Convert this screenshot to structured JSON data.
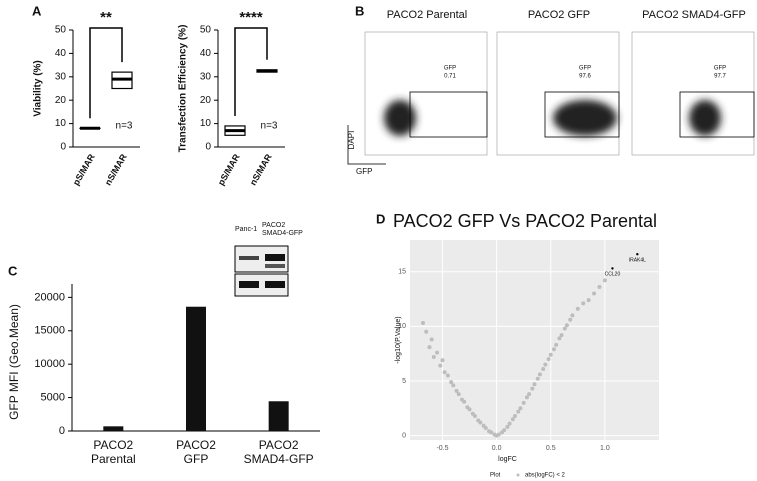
{
  "panels": {
    "a": "A",
    "b": "B",
    "c": "C",
    "d": "D"
  },
  "flow": {
    "x_label": "GFP",
    "y_label": "DAPI",
    "plots": [
      {
        "title": "PACO2 Parental",
        "gate_label": "GFP",
        "gate_value": 0.71
      },
      {
        "title": "PACO2 GFP",
        "gate_label": "GFP",
        "gate_value": 97.6
      },
      {
        "title": "PACO2 SMAD4-GFP",
        "gate_label": "GFP",
        "gate_value": 97.7
      }
    ]
  },
  "blot": {
    "lanes": [
      "Panc-1",
      "PACO2 SMAD4-GFP"
    ]
  },
  "chart_data": [
    {
      "type": "box",
      "y_label": "Viability (%)",
      "categories": [
        "pS/MAR",
        "nS/MAR"
      ],
      "low": [
        8,
        25
      ],
      "median": [
        8,
        29
      ],
      "high": [
        8,
        32
      ],
      "ylim": [
        0,
        50
      ],
      "yticks": [
        0,
        10,
        20,
        30,
        40,
        50
      ],
      "significance": "**",
      "annotation": "n=3",
      "color": "#000000"
    },
    {
      "type": "box",
      "y_label": "Transfection Efficiency (%)",
      "categories": [
        "pS/MAR",
        "nS/MAR"
      ],
      "low": [
        5,
        32
      ],
      "median": [
        7,
        32.5
      ],
      "high": [
        9,
        33
      ],
      "ylim": [
        0,
        50
      ],
      "yticks": [
        0,
        10,
        20,
        30,
        40,
        50
      ],
      "significance": "****",
      "annotation": "n=3",
      "color": "#000000"
    },
    {
      "type": "bar",
      "y_label": "GFP MFI (Geo.Mean)",
      "categories": [
        "PACO2 Parental",
        "PACO2 GFP",
        "PACO2 SMAD4-GFP"
      ],
      "values": [
        700,
        18600,
        4450
      ],
      "color": "#111111",
      "ylim": [
        0,
        22000
      ],
      "yticks": [
        0,
        5000,
        10000,
        15000,
        20000
      ]
    },
    {
      "type": "scatter",
      "title": "PACO2 GFP Vs PACO2 Parental",
      "x_label": "logFC",
      "y_label": "-log10(P.Value)",
      "color": "#bdbdbd",
      "x": [
        -0.68,
        -0.65,
        -0.62,
        -0.6,
        -0.58,
        -0.55,
        -0.52,
        -0.5,
        -0.48,
        -0.45,
        -0.42,
        -0.4,
        -0.37,
        -0.35,
        -0.32,
        -0.3,
        -0.27,
        -0.25,
        -0.22,
        -0.2,
        -0.17,
        -0.15,
        -0.12,
        -0.1,
        -0.07,
        -0.05,
        -0.02,
        0,
        0.02,
        0.05,
        0.07,
        0.1,
        0.12,
        0.15,
        0.17,
        0.2,
        0.22,
        0.25,
        0.28,
        0.3,
        0.33,
        0.35,
        0.38,
        0.4,
        0.43,
        0.45,
        0.48,
        0.5,
        0.53,
        0.55,
        0.58,
        0.6,
        0.63,
        0.65,
        0.68,
        0.7,
        0.75,
        0.8,
        0.85,
        0.9,
        0.95,
        1.0
      ],
      "y": [
        10.3,
        9.5,
        8.1,
        8.8,
        7.2,
        7.6,
        6.4,
        6.9,
        5.8,
        5.5,
        4.9,
        4.6,
        4.1,
        3.8,
        3.3,
        3.1,
        2.6,
        2.4,
        2.0,
        1.8,
        1.4,
        1.2,
        0.9,
        0.7,
        0.4,
        0.3,
        0.1,
        0,
        0.1,
        0.3,
        0.5,
        0.8,
        1.1,
        1.5,
        1.8,
        2.2,
        2.5,
        3.0,
        3.5,
        3.8,
        4.3,
        4.7,
        5.2,
        5.6,
        6.1,
        6.5,
        7.0,
        7.4,
        7.9,
        8.3,
        8.9,
        9.2,
        9.8,
        10.1,
        10.6,
        11.0,
        11.6,
        12.1,
        12.4,
        13.0,
        13.6,
        14.2
      ],
      "xlim": [
        -0.8,
        1.5
      ],
      "ylim": [
        -0.4,
        17.9
      ],
      "xticks": [
        -0.5,
        {
          "value": 0,
          "label": "0.0"
        },
        0.5,
        {
          "value": 1,
          "label": "1.0"
        }
      ],
      "yticks": [
        0,
        5,
        10,
        15
      ],
      "grid": true,
      "legend": {
        "title": "Plot",
        "label": "abs(logFC) < 2"
      },
      "annotations": [
        {
          "text": "CCL20",
          "x": 1.07,
          "y": 15.3
        },
        {
          "text": "IRAK4L",
          "x": 1.3,
          "y": 16.6
        }
      ]
    }
  ]
}
